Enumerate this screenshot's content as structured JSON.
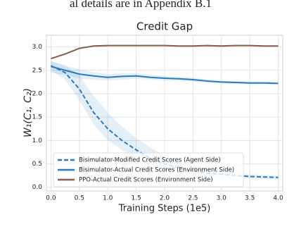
{
  "page_fragment": "al details are in Appendix B.1",
  "chart_data": {
    "type": "line",
    "title": "Credit Gap",
    "x_label": "Training Steps (1e5)",
    "y_label": "W₁(C₁, C₂)",
    "x": [
      0,
      0.25,
      0.5,
      0.75,
      1.0,
      1.25,
      1.5,
      1.75,
      2.0,
      2.25,
      2.5,
      2.75,
      3.0,
      3.25,
      3.5,
      3.75,
      4.0
    ],
    "series": [
      {
        "name": "Bisimulator-Modified Credit Scores (Agent Side)",
        "color": "#2a7bbf",
        "linestyle": "dashed",
        "values": [
          2.6,
          2.45,
          2.1,
          1.6,
          1.25,
          1.0,
          0.8,
          0.62,
          0.5,
          0.42,
          0.35,
          0.3,
          0.28,
          0.25,
          0.23,
          0.22,
          0.21
        ],
        "lower": [
          2.5,
          2.3,
          1.85,
          1.35,
          1.0,
          0.8,
          0.62,
          0.48,
          0.38,
          0.32,
          0.27,
          0.23,
          0.22,
          0.2,
          0.19,
          0.18,
          0.17
        ],
        "upper": [
          2.7,
          2.6,
          2.4,
          1.95,
          1.6,
          1.3,
          1.05,
          0.85,
          0.68,
          0.55,
          0.45,
          0.38,
          0.34,
          0.3,
          0.28,
          0.26,
          0.25
        ]
      },
      {
        "name": "Bisimulator-Actual Credit Scores (Environment Side)",
        "color": "#2a7bbf",
        "linestyle": "solid",
        "values": [
          2.58,
          2.5,
          2.42,
          2.38,
          2.35,
          2.37,
          2.38,
          2.35,
          2.33,
          2.32,
          2.3,
          2.27,
          2.25,
          2.24,
          2.23,
          2.23,
          2.22
        ],
        "lower": [
          2.45,
          2.4,
          2.32,
          2.3,
          2.28,
          2.3,
          2.32,
          2.3,
          2.28,
          2.28,
          2.26,
          2.24,
          2.22,
          2.21,
          2.2,
          2.2,
          2.19
        ],
        "upper": [
          2.7,
          2.6,
          2.52,
          2.46,
          2.42,
          2.44,
          2.44,
          2.4,
          2.38,
          2.36,
          2.34,
          2.3,
          2.28,
          2.27,
          2.26,
          2.26,
          2.25
        ]
      },
      {
        "name": "PPO-Actual Credit Scores (Environment Side)",
        "color": "#8b5a52",
        "linestyle": "solid",
        "values": [
          2.75,
          2.85,
          2.97,
          3.02,
          3.03,
          3.03,
          3.03,
          3.03,
          3.03,
          3.02,
          3.02,
          3.03,
          3.02,
          3.03,
          3.03,
          3.02,
          3.02
        ]
      }
    ],
    "xlim": [
      -0.08,
      4.08
    ],
    "ylim": [
      -0.08,
      3.25
    ],
    "xticks": [
      {
        "value": 0,
        "label": "0.0"
      },
      {
        "value": 0.5,
        "label": "0.5"
      },
      {
        "value": 1,
        "label": "1.0"
      },
      {
        "value": 1.5,
        "label": "1.5"
      },
      {
        "value": 2,
        "label": "2.0"
      },
      {
        "value": 2.5,
        "label": "2.5"
      },
      {
        "value": 3,
        "label": "3.0"
      },
      {
        "value": 3.5,
        "label": "3.5"
      },
      {
        "value": 4,
        "label": "4.0"
      }
    ],
    "yticks": [
      {
        "value": 0,
        "label": "0.0"
      },
      {
        "value": 0.5,
        "label": "0.5"
      },
      {
        "value": 1,
        "label": "1.0"
      },
      {
        "value": 1.5,
        "label": "1.5"
      },
      {
        "value": 2,
        "label": "2.0"
      },
      {
        "value": 2.5,
        "label": "2.5"
      },
      {
        "value": 3,
        "label": "3.0"
      }
    ],
    "grid": true,
    "legend": "lower left"
  }
}
